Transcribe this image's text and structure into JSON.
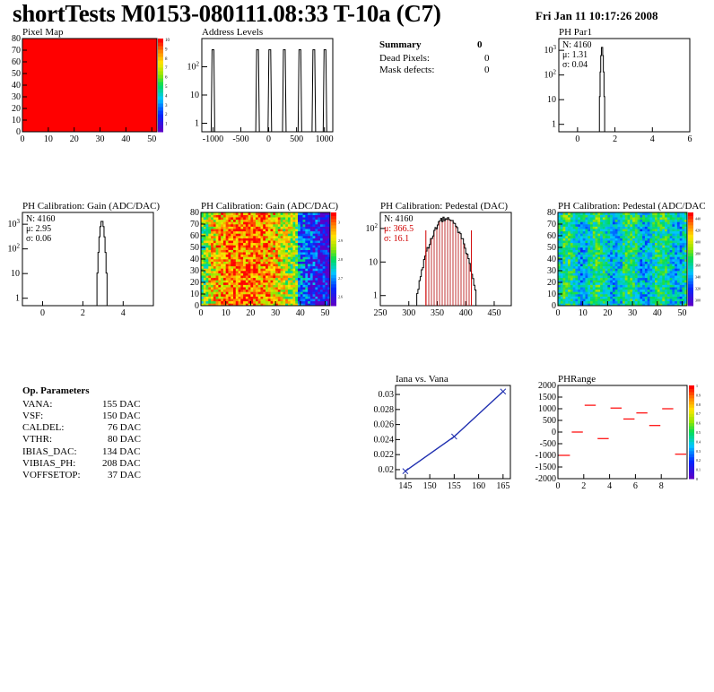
{
  "header": {
    "title": "shortTests M0153-080111.08:33 T-10a (C7)",
    "date": "Fri Jan 11 10:17:26 2008"
  },
  "summary": {
    "title": "Summary",
    "title_value": "0",
    "rows": [
      {
        "label": "Dead Pixels:",
        "value": "0"
      },
      {
        "label": "Mask defects:",
        "value": "0"
      }
    ]
  },
  "parameters": {
    "title": "Op. Parameters",
    "rows": [
      {
        "name": "VANA:",
        "value": "155 DAC"
      },
      {
        "name": "VSF:",
        "value": "150 DAC"
      },
      {
        "name": "CALDEL:",
        "value": "76 DAC"
      },
      {
        "name": "VTHR:",
        "value": "80 DAC"
      },
      {
        "name": "IBIAS_DAC:",
        "value": "134 DAC"
      },
      {
        "name": "VIBIAS_PH:",
        "value": "208 DAC"
      },
      {
        "name": "VOFFSETOP:",
        "value": "37 DAC"
      }
    ]
  },
  "chart_data": [
    {
      "id": "pixel-map",
      "type": "heatmap",
      "title": "Pixel Map",
      "xlim": [
        0,
        52
      ],
      "ylim": [
        0,
        80
      ],
      "xticks": [
        "0",
        "10",
        "20",
        "30",
        "40",
        "50"
      ],
      "yticks": [
        "0",
        "10",
        "20",
        "30",
        "40",
        "50",
        "60",
        "70",
        "80"
      ],
      "zlim": [
        0,
        10
      ],
      "zticks": [
        "1",
        "2",
        "3",
        "4",
        "5",
        "6",
        "7",
        "8",
        "9",
        "10"
      ],
      "fill_value": 10,
      "fill_color": "#ff0000"
    },
    {
      "id": "address-levels",
      "type": "line",
      "title": "Address Levels",
      "log_y": true,
      "xlim": [
        -1200,
        1150
      ],
      "xticks": [
        "-1000",
        "-500",
        "0",
        "500",
        "1000"
      ],
      "yticks": [
        "1",
        "10",
        "10^{2}"
      ],
      "peaks": [
        -1000,
        -200,
        20,
        280,
        560,
        810,
        1010
      ],
      "peak_height": 400
    },
    {
      "id": "ph-par1",
      "type": "line",
      "title": "PH Par1",
      "log_y": true,
      "xlim": [
        -1,
        6
      ],
      "xticks": [
        "0",
        "2",
        "4",
        "6"
      ],
      "yticks": [
        "1",
        "10",
        "10^{2}",
        "10^{3}"
      ],
      "stats": {
        "n": "N: 4160",
        "mu": "μ: 1.31",
        "sigma": "σ: 0.04"
      },
      "mean": 1.31,
      "sigma": 0.04,
      "entries": 4160
    },
    {
      "id": "ph-gain",
      "type": "line",
      "title": "PH Calibration: Gain (ADC/DAC)",
      "log_y": true,
      "xlim": [
        -1,
        5.5
      ],
      "xticks": [
        "0",
        "2",
        "4"
      ],
      "yticks": [
        "1",
        "10",
        "10^{2}",
        "10^{3}"
      ],
      "stats": {
        "n": "N: 4160",
        "mu": "μ: 2.95",
        "sigma": "σ: 0.06"
      },
      "mean": 2.95,
      "sigma": 0.06,
      "entries": 4160
    },
    {
      "id": "ph-gain-map",
      "type": "heatmap",
      "title": "PH Calibration: Gain (ADC/DAC)",
      "xlim": [
        0,
        52
      ],
      "ylim": [
        0,
        80
      ],
      "xticks": [
        "0",
        "10",
        "20",
        "30",
        "40",
        "50"
      ],
      "yticks": [
        "0",
        "10",
        "20",
        "30",
        "40",
        "50",
        "60",
        "70",
        "80"
      ],
      "zticks": [
        "2.6",
        "2.7",
        "2.8",
        "2.9",
        "3"
      ],
      "pattern": "gain"
    },
    {
      "id": "ph-pedestal",
      "type": "line",
      "title": "PH Calibration: Pedestal (DAC)",
      "log_y": true,
      "xlim": [
        250,
        480
      ],
      "xticks": [
        "250",
        "300",
        "350",
        "400",
        "450"
      ],
      "yticks": [
        "1",
        "10",
        "10^{2}"
      ],
      "stats": {
        "n": "N: 4160",
        "mu": "μ: 366.5",
        "sigma": "σ: 16.1"
      },
      "mean": 366.5,
      "sigma": 16.1,
      "entries": 4160,
      "cut_lines": [
        330,
        410
      ]
    },
    {
      "id": "ph-pedestal-map",
      "type": "heatmap",
      "title": "PH Calibration: Pedestal (ADC/DAC)",
      "xlim": [
        0,
        52
      ],
      "ylim": [
        0,
        80
      ],
      "xticks": [
        "0",
        "10",
        "20",
        "30",
        "40",
        "50"
      ],
      "yticks": [
        "0",
        "10",
        "20",
        "30",
        "40",
        "50",
        "60",
        "70",
        "80"
      ],
      "zticks": [
        "300",
        "320",
        "340",
        "360",
        "380",
        "400",
        "420",
        "440"
      ],
      "pattern": "pedestal"
    },
    {
      "id": "iana-vana",
      "type": "line",
      "title": "Iana vs. Vana",
      "xlim": [
        143,
        166.5
      ],
      "ylim": [
        0.0188,
        0.0312
      ],
      "xticks": [
        "145",
        "150",
        "155",
        "160",
        "165"
      ],
      "yticks": [
        "0.02",
        "0.022",
        "0.024",
        "0.026",
        "0.028",
        "0.03"
      ],
      "x": [
        145,
        155,
        165
      ],
      "y": [
        0.0198,
        0.0244,
        0.0304
      ],
      "color": "#1f2fb0"
    },
    {
      "id": "phrange",
      "type": "scatter",
      "title": "PHRange",
      "xlim": [
        0,
        10
      ],
      "ylim": [
        -2000,
        2000
      ],
      "xticks": [
        "0",
        "2",
        "4",
        "6",
        "8"
      ],
      "yticks": [
        "-2000",
        "-1500",
        "-1000",
        "-500",
        "0",
        "500",
        "1000",
        "1500",
        "2000"
      ],
      "x_bins": [
        0.5,
        1.5,
        2.5,
        3.5,
        4.5,
        5.5,
        6.5,
        7.5,
        8.5,
        9.5
      ],
      "values": [
        -1000,
        0,
        1150,
        -280,
        1030,
        560,
        820,
        280,
        1000,
        -950
      ],
      "zticks": [
        "0",
        "0.1",
        "0.2",
        "0.3",
        "0.4",
        "0.5",
        "0.6",
        "0.7",
        "0.8",
        "0.9",
        "1"
      ],
      "color": "#ff0000"
    }
  ]
}
